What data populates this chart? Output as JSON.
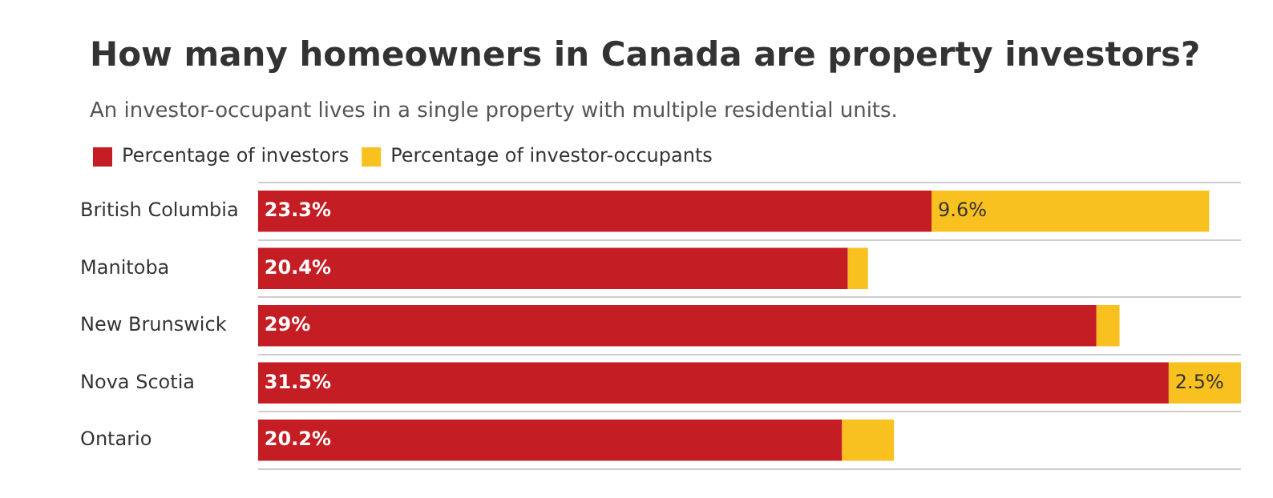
{
  "chart_data": {
    "type": "bar",
    "orientation": "horizontal",
    "stacked": true,
    "title": "How many homeowners in Canada are property investors?",
    "subtitle": "An investor-occupant lives in a single property with multiple residential units.",
    "categories": [
      "British Columbia",
      "Manitoba",
      "New Brunswick",
      "Nova Scotia",
      "Ontario"
    ],
    "series": [
      {
        "name": "Percentage of investors",
        "color": "#c41e24",
        "values": [
          23.3,
          20.4,
          29,
          31.5,
          20.2
        ],
        "value_labels": [
          "23.3%",
          "20.4%",
          "29%",
          "31.5%",
          "20.2%"
        ]
      },
      {
        "name": "Percentage of investor-occupants",
        "color": "#f8c120",
        "values": [
          9.6,
          0.7,
          0.8,
          2.5,
          1.8
        ],
        "value_labels": [
          "9.6%",
          null,
          null,
          "2.5%",
          null
        ]
      }
    ],
    "legend": "top left",
    "grid": "y"
  }
}
